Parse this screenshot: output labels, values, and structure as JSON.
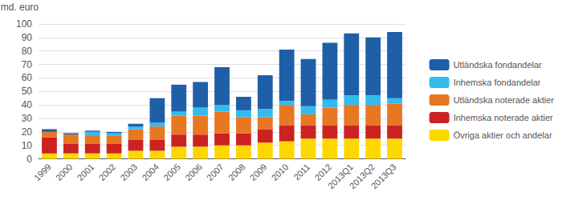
{
  "chart_data": {
    "type": "bar",
    "stacked": true,
    "ylabel": "md. euro",
    "categories": [
      "1999",
      "2000",
      "2001",
      "2002",
      "2003",
      "2004",
      "2005",
      "2006",
      "2007",
      "2008",
      "2009",
      "2010",
      "2011",
      "2012",
      "2013Q1",
      "2013Q2",
      "2013Q3"
    ],
    "series": [
      {
        "name": "Övriga aktier och andelar",
        "color": "#FFD700",
        "values": [
          4,
          4,
          4,
          4,
          6,
          6,
          9,
          9,
          10,
          10,
          12,
          13,
          15,
          15,
          15,
          15,
          15
        ]
      },
      {
        "name": "Inhemska noterade aktier",
        "color": "#CC2222",
        "values": [
          12,
          7,
          7,
          7,
          8,
          8,
          9,
          9,
          9,
          9,
          10,
          12,
          10,
          10,
          10,
          10,
          10
        ]
      },
      {
        "name": "Utländska noterade aktier",
        "color": "#E87722",
        "values": [
          4,
          7,
          6,
          6,
          8,
          10,
          14,
          14,
          16,
          12,
          9,
          15,
          8,
          13,
          15,
          15,
          16
        ]
      },
      {
        "name": "Inhemska fondandelar",
        "color": "#33BBEE",
        "values": [
          0,
          0,
          3,
          2,
          2,
          3,
          3,
          6,
          5,
          5,
          6,
          3,
          6,
          6,
          7,
          7,
          4
        ]
      },
      {
        "name": "Utländska fondandelar",
        "color": "#1E5FA8",
        "values": [
          2,
          1,
          1,
          1,
          2,
          18,
          20,
          19,
          28,
          10,
          25,
          38,
          35,
          42,
          46,
          43,
          49
        ]
      }
    ],
    "ylim": [
      0,
      100
    ],
    "yticks": [
      0,
      10,
      20,
      30,
      40,
      50,
      60,
      70,
      80,
      90,
      100
    ],
    "grid": true,
    "legend": "right"
  }
}
